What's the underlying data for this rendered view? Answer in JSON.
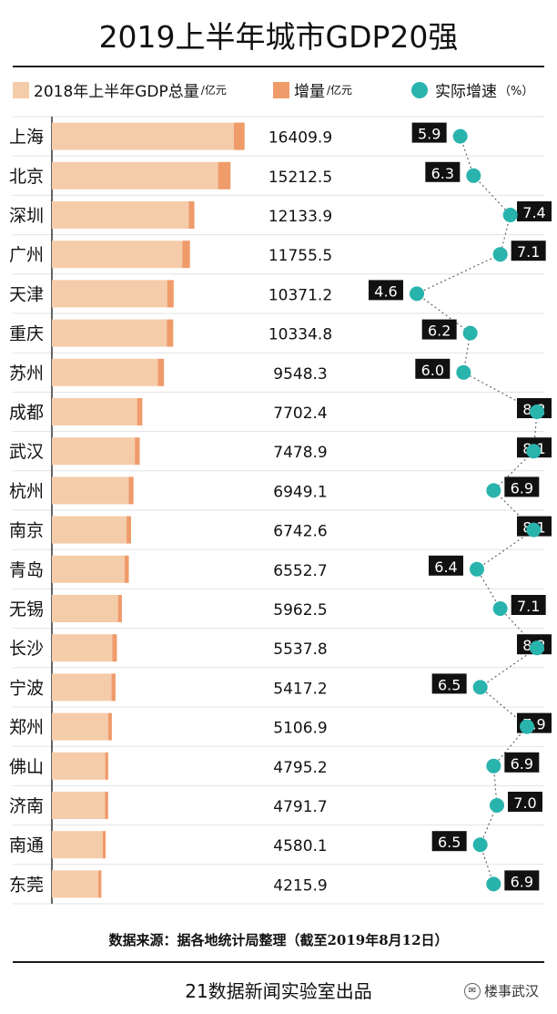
{
  "title": "2019上半年城市GDP20强",
  "legend": {
    "base_label": "2018年上半年GDP总量",
    "base_unit": "/亿元",
    "inc_label": "增量",
    "inc_unit": "/亿元",
    "rate_label": "实际增速",
    "rate_unit": "（%）"
  },
  "colors": {
    "base": "#f5ccaa",
    "increase": "#ef9b6a",
    "rate_dot": "#29b3ad",
    "label_bg": "#111111"
  },
  "chart_data": {
    "type": "bar",
    "categories": [
      "上海",
      "北京",
      "深圳",
      "广州",
      "天津",
      "重庆",
      "苏州",
      "成都",
      "武汉",
      "杭州",
      "南京",
      "青岛",
      "无锡",
      "长沙",
      "宁波",
      "郑州",
      "佛山",
      "济南",
      "南通",
      "东莞"
    ],
    "series": [
      {
        "name": "2018年上半年GDP总量",
        "values": [
          15500,
          14150,
          11650,
          11100,
          9820,
          9790,
          9020,
          7260,
          7060,
          6550,
          6360,
          6200,
          5630,
          5150,
          5080,
          4800,
          4540,
          4530,
          4320,
          3960
        ]
      },
      {
        "name": "增量",
        "values": [
          909.9,
          1062.5,
          483.9,
          655.5,
          551.2,
          544.8,
          528.3,
          442.4,
          418.9,
          399.1,
          382.6,
          352.7,
          332.5,
          387.8,
          337.2,
          306.9,
          255.2,
          261.7,
          260.1,
          255.9
        ]
      },
      {
        "name": "实际增速",
        "values": [
          5.9,
          6.3,
          7.4,
          7.1,
          4.6,
          6.2,
          6.0,
          8.2,
          8.1,
          6.9,
          8.1,
          6.4,
          7.1,
          8.2,
          6.5,
          7.9,
          6.9,
          7.0,
          6.5,
          6.9
        ]
      }
    ],
    "totals": [
      "16409.9",
      "15212.5",
      "12133.9",
      "11755.5",
      "10371.2",
      "10334.8",
      "9548.3",
      "7702.4",
      "7478.9",
      "6949.1",
      "6742.6",
      "6552.7",
      "5962.5",
      "5537.8",
      "5417.2",
      "5106.9",
      "4795.2",
      "4791.7",
      "4580.1",
      "4215.9"
    ],
    "rate_labels": [
      "5.9",
      "6.3",
      "7.4",
      "7.1",
      "4.6",
      "6.2",
      "6.0",
      "8.2",
      "8.1",
      "6.9",
      "8.1",
      "6.4",
      "7.1",
      "8.2",
      "6.5",
      "7.9",
      "6.9",
      "7.0",
      "6.5",
      "6.9"
    ],
    "rate_range": [
      4.6,
      8.2
    ]
  },
  "footer": {
    "source": "数据来源：据各地统计局整理（截至2019年8月12日）",
    "credit": "21数据新闻实验室出品",
    "watermark": "楼事武汉"
  }
}
